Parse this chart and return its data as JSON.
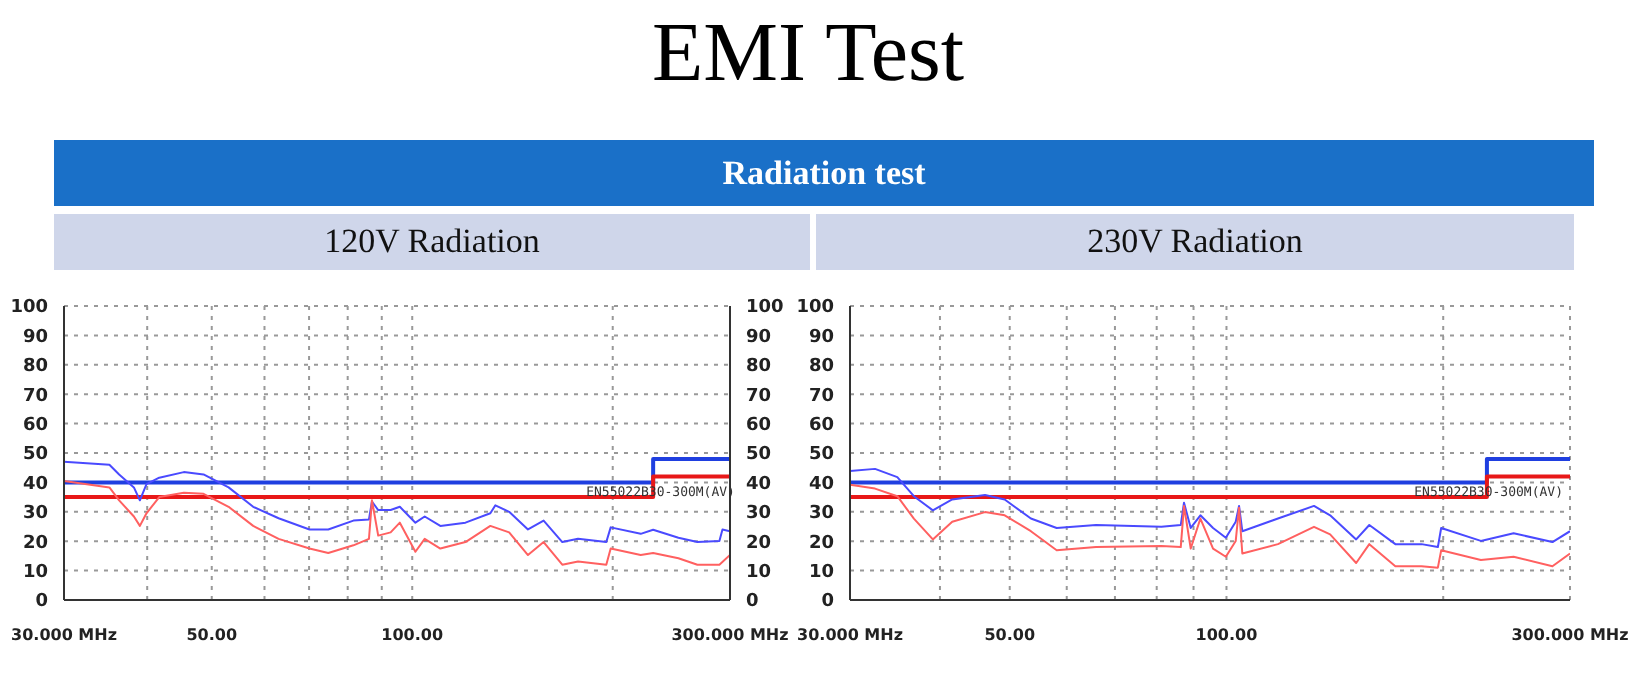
{
  "chart_data": [
    {
      "type": "line",
      "title": "EMI Test",
      "subtitle": "Radiation test",
      "annotations": [
        "120V Radiation",
        {
          "text": "EN55022B30-300M(AV)",
          "x": 180,
          "y": 40
        }
      ],
      "log": "x",
      "grid": true,
      "xlim": [
        30,
        300
      ],
      "xticks": [
        {
          "value": 30,
          "label": "30.000 MHz"
        },
        {
          "value": 40,
          "label": null
        },
        {
          "value": 50,
          "label": "50.00"
        },
        {
          "value": 60,
          "label": null
        },
        {
          "value": 70,
          "label": null
        },
        {
          "value": 80,
          "label": null
        },
        {
          "value": 90,
          "label": null
        },
        {
          "value": 100,
          "label": "100.00"
        },
        {
          "value": 200,
          "label": null
        },
        {
          "value": 300,
          "label": "300.000 MHz"
        }
      ],
      "ylim": [
        0,
        100
      ],
      "yticks": [
        0,
        10,
        20,
        30,
        40,
        50,
        60,
        70,
        80,
        90,
        100
      ],
      "y2lim": [
        0,
        100
      ],
      "y2ticks": [
        0,
        10,
        20,
        30,
        40,
        50,
        60,
        70,
        80,
        90,
        100
      ],
      "series": [
        {
          "type": "step",
          "color": "#1f3fe0",
          "x": [
            30,
            230,
            300
          ],
          "values": [
            40,
            48,
            48
          ]
        },
        {
          "type": "step",
          "color": "#e81818",
          "x": [
            30,
            230,
            300
          ],
          "values": [
            35,
            42,
            42
          ]
        },
        {
          "color": "#4a4aff",
          "x": [
            30,
            35.1,
            36.3,
            38.2,
            39.0,
            39.9,
            41.7,
            45.4,
            48.6,
            53.0,
            57.7,
            63.0,
            70.1,
            74.8,
            81.6,
            86.1,
            87.0,
            88.9,
            92.8,
            95.8,
            101.1,
            104.4,
            110.2,
            120.2,
            131.0,
            133.3,
            139.8,
            149.2,
            157.5,
            168.0,
            177.4,
            195.6,
            198.6,
            220.3,
            230.0,
            251.0,
            268.0,
            289.2,
            292.3,
            300
          ],
          "values": [
            47,
            46,
            42.7,
            38.3,
            33.9,
            39.4,
            41.6,
            43.5,
            42.7,
            38.3,
            31.7,
            27.8,
            24,
            24,
            27,
            27.4,
            33.5,
            30.6,
            30.6,
            31.7,
            26.3,
            28.4,
            25.2,
            26.3,
            29.5,
            32.2,
            30,
            24,
            27,
            19.7,
            20.8,
            19.7,
            24.7,
            22.5,
            23.9,
            21.2,
            19.7,
            20.1,
            24,
            23.4
          ]
        },
        {
          "color": "#ff6060",
          "x": [
            30,
            35.1,
            36.3,
            38.2,
            39.0,
            39.9,
            41.7,
            45.4,
            48.6,
            53.0,
            57.7,
            63.0,
            70.1,
            74.8,
            81.6,
            86.1,
            87.0,
            88.9,
            92.8,
            95.8,
            101.1,
            104.4,
            110.2,
            120.2,
            131.0,
            139.8,
            149.2,
            157.5,
            168.0,
            177.4,
            195.6,
            198.6,
            220.3,
            230.0,
            251.0,
            268.0,
            289.2,
            300
          ],
          "values": [
            40.5,
            38.3,
            33.9,
            28.4,
            25.2,
            29.5,
            35,
            36.5,
            36.1,
            31.7,
            25.2,
            20.8,
            17.5,
            16,
            18.6,
            20.8,
            33.9,
            21.9,
            23,
            26.3,
            16.4,
            20.8,
            17.5,
            19.7,
            25.2,
            23,
            15.3,
            19.7,
            12,
            13.1,
            12,
            17.5,
            15.3,
            16,
            14.2,
            12,
            12,
            15.3
          ]
        }
      ]
    },
    {
      "type": "line",
      "annotations": [
        "230V Radiation",
        {
          "text": "EN55022B30-300M(AV)",
          "x": 180,
          "y": 40
        }
      ],
      "log": "x",
      "grid": true,
      "xlim": [
        30,
        300
      ],
      "xticks": [
        {
          "value": 30,
          "label": "30.000 MHz"
        },
        {
          "value": 40,
          "label": null
        },
        {
          "value": 50,
          "label": "50.00"
        },
        {
          "value": 60,
          "label": null
        },
        {
          "value": 70,
          "label": null
        },
        {
          "value": 80,
          "label": null
        },
        {
          "value": 90,
          "label": null
        },
        {
          "value": 100,
          "label": "100.00"
        },
        {
          "value": 200,
          "label": null
        },
        {
          "value": 300,
          "label": "300.000 MHz"
        }
      ],
      "ylim": [
        0,
        100
      ],
      "yticks": [
        0,
        10,
        20,
        30,
        40,
        50,
        60,
        70,
        80,
        90,
        100
      ],
      "series": [
        {
          "type": "step",
          "color": "#1f3fe0",
          "x": [
            30,
            230,
            300
          ],
          "values": [
            40,
            48,
            48
          ]
        },
        {
          "type": "step",
          "color": "#e81818",
          "x": [
            30,
            230,
            300
          ],
          "values": [
            35,
            42,
            42
          ]
        },
        {
          "color": "#4a4aff",
          "x": [
            30,
            32.5,
            34.9,
            36.8,
            39.1,
            41.6,
            46.2,
            49.2,
            53.5,
            58.1,
            65.9,
            81.2,
            86.4,
            87.3,
            89.2,
            92.0,
            95.8,
            99.8,
            103.0,
            104.1,
            105.2,
            117.9,
            132.3,
            139.3,
            151.4,
            157.9,
            171.6,
            186.6,
            196.6,
            198.7,
            225.6,
            250.5,
            283.6,
            300
          ],
          "values": [
            43.9,
            44.6,
            41.8,
            35.3,
            30.5,
            34.2,
            35.7,
            34.2,
            27.7,
            24.5,
            25.5,
            24.9,
            25.5,
            33.1,
            24.5,
            28.8,
            24.5,
            21.2,
            26.6,
            32,
            23.4,
            27.7,
            32,
            28.8,
            20.6,
            25.5,
            19,
            19,
            18,
            24.5,
            20.1,
            22.7,
            19.7,
            23.4
          ]
        },
        {
          "color": "#ff6060",
          "x": [
            30,
            32.5,
            34.9,
            36.8,
            39.1,
            41.6,
            46.2,
            49.2,
            53.5,
            58.1,
            65.9,
            81.2,
            86.4,
            87.3,
            89.2,
            92.0,
            95.8,
            99.8,
            103.0,
            104.1,
            105.2,
            117.9,
            132.3,
            139.3,
            151.4,
            157.9,
            171.6,
            186.6,
            196.6,
            198.7,
            225.6,
            250.5,
            283.6,
            300
          ],
          "values": [
            39.2,
            37.9,
            35.3,
            27.7,
            20.6,
            26.6,
            29.9,
            28.8,
            23.4,
            16.9,
            18,
            18.4,
            18,
            32,
            17.5,
            27.7,
            17.5,
            14.7,
            20.1,
            31.4,
            15.8,
            19,
            24.9,
            22.3,
            12.6,
            19,
            11.5,
            11.5,
            11,
            16.9,
            13.6,
            14.7,
            11.5,
            15.8
          ]
        }
      ]
    }
  ]
}
